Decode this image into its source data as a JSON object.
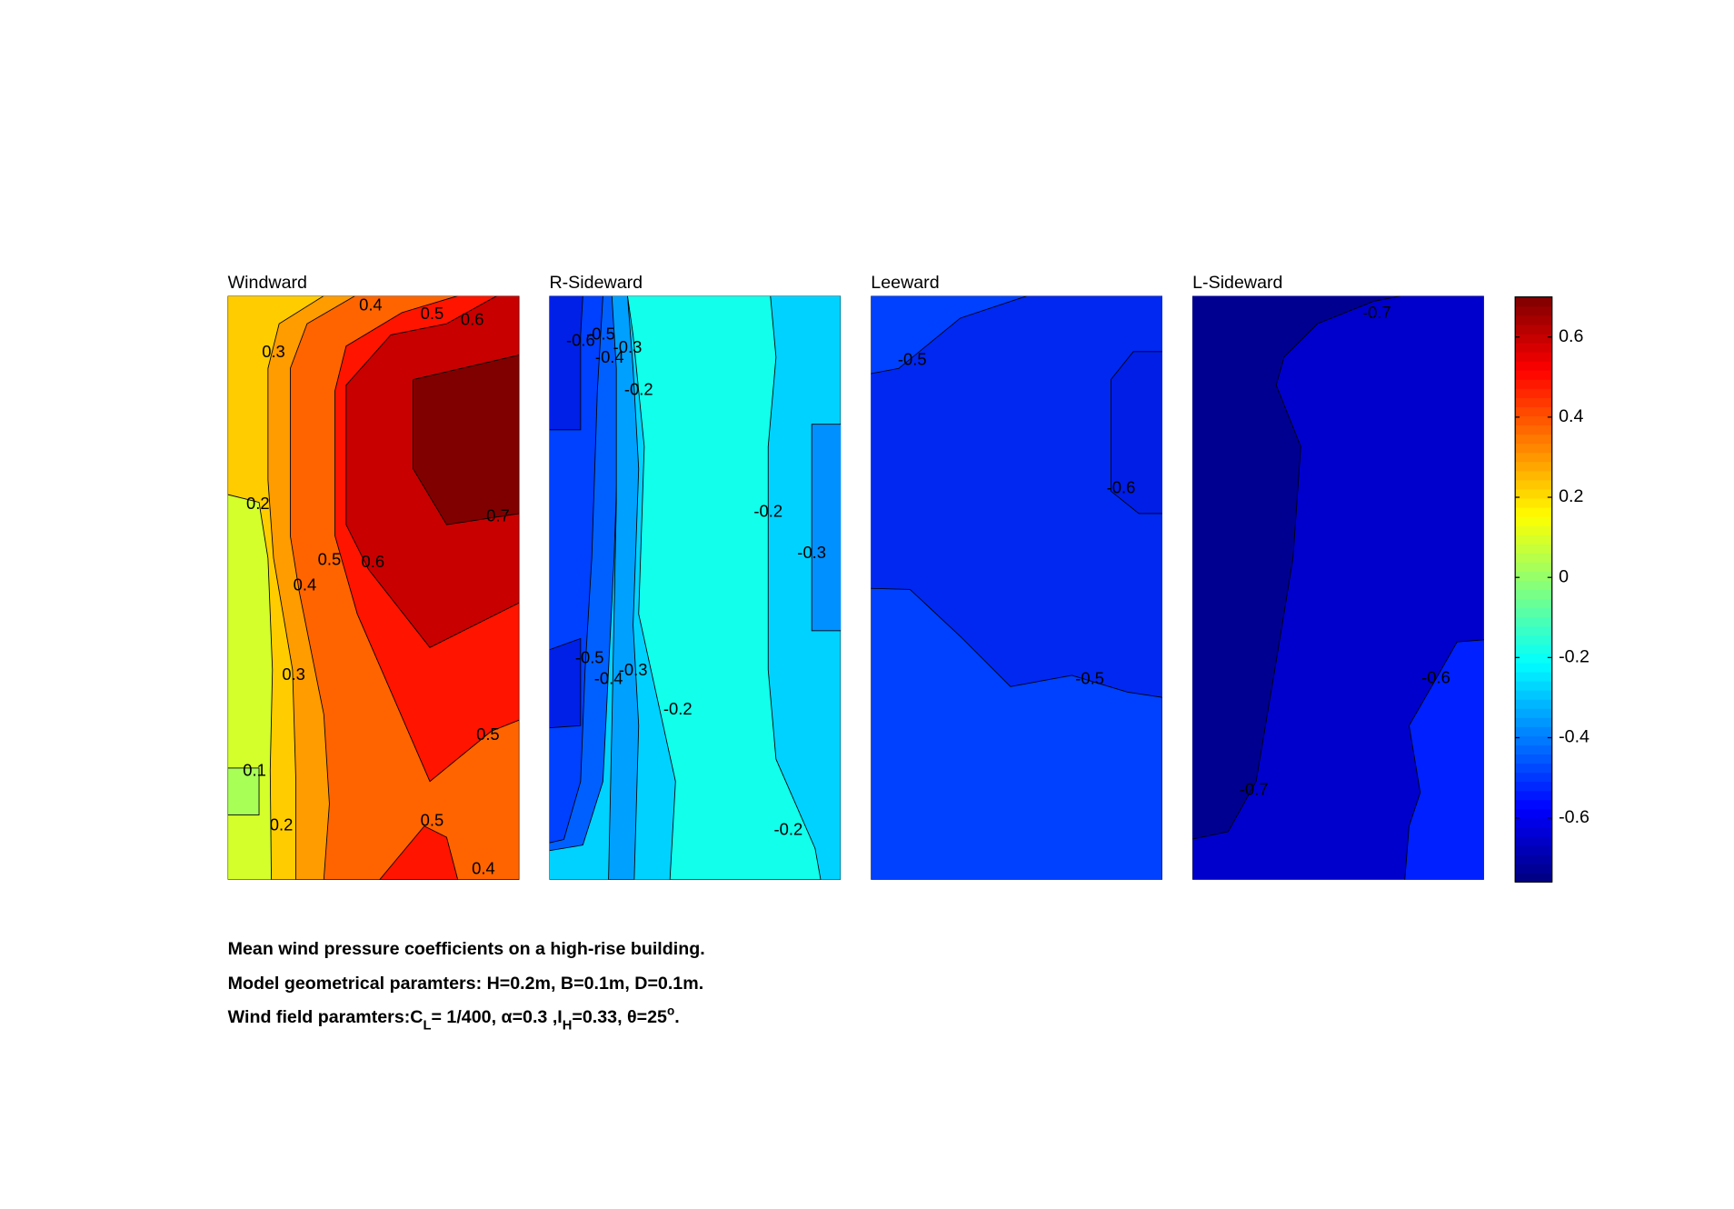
{
  "chart_data": [
    {
      "type": "contour",
      "title": "Windward",
      "contour_labels": [
        0.4,
        0.5,
        0.6,
        0.3,
        0.2,
        0.7,
        0.5,
        0.6,
        0.4,
        0.3,
        0.5,
        0.1,
        0.2,
        0.5,
        0.4
      ]
    },
    {
      "type": "contour",
      "title": "R-Sideward",
      "contour_labels": [
        -0.6,
        -0.5,
        -0.4,
        -0.3,
        -0.2,
        -0.2,
        -0.3,
        -0.5,
        -0.4,
        -0.3,
        -0.2,
        -0.2
      ]
    },
    {
      "type": "contour",
      "title": "Leeward",
      "contour_labels": [
        -0.5,
        -0.6,
        -0.5
      ]
    },
    {
      "type": "contour",
      "title": "L-Sideward",
      "contour_labels": [
        -0.7,
        -0.6,
        -0.7
      ]
    }
  ],
  "colorbar": {
    "ylim": [
      -0.76,
      0.7
    ],
    "yticks": [
      -0.6,
      -0.4,
      -0.2,
      0,
      0.2,
      0.4,
      0.6
    ]
  },
  "caption": {
    "lines": [
      "Mean wind pressure coefficients on a high-rise building.",
      "Model geometrical paramters: H=0.2m, B=0.1m, D=0.1m."
    ],
    "line3": [
      "Wind field paramters:C",
      "L",
      "= 1/400, α=0.3 ,I",
      "H",
      "=0.33, θ=25",
      "o",
      "."
    ]
  }
}
